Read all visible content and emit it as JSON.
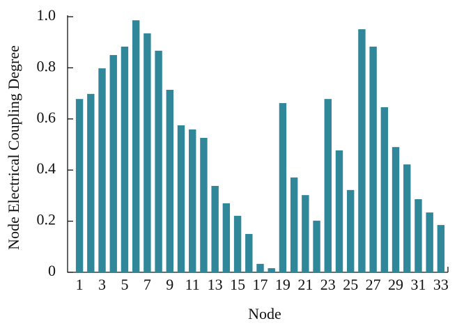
{
  "chart_data": {
    "type": "bar",
    "x_label": "Node",
    "y_label": "Node Electrical Coupling Degree",
    "categories": [
      "1",
      null,
      "3",
      null,
      "5",
      null,
      "7",
      null,
      "9",
      null,
      "11",
      null,
      "13",
      null,
      "15",
      null,
      "17",
      null,
      "19",
      null,
      "21",
      null,
      "23",
      null,
      "25",
      null,
      "27",
      null,
      "29",
      null,
      "31",
      null,
      "33"
    ],
    "values": [
      0.678,
      0.698,
      0.798,
      0.85,
      0.883,
      0.986,
      0.935,
      0.867,
      0.714,
      0.575,
      0.559,
      0.526,
      0.338,
      0.27,
      0.221,
      0.15,
      0.033,
      0.016,
      0.662,
      0.371,
      0.302,
      0.202,
      0.678,
      0.477,
      0.322,
      0.951,
      0.883,
      0.646,
      0.49,
      0.422,
      0.286,
      0.234,
      0.185
    ],
    "color": "#31879a",
    "ylim": [
      0,
      1
    ],
    "yticks": [
      0,
      0.2,
      0.4,
      0.6,
      0.8,
      {
        "value": 1,
        "label": "1.0"
      }
    ]
  }
}
